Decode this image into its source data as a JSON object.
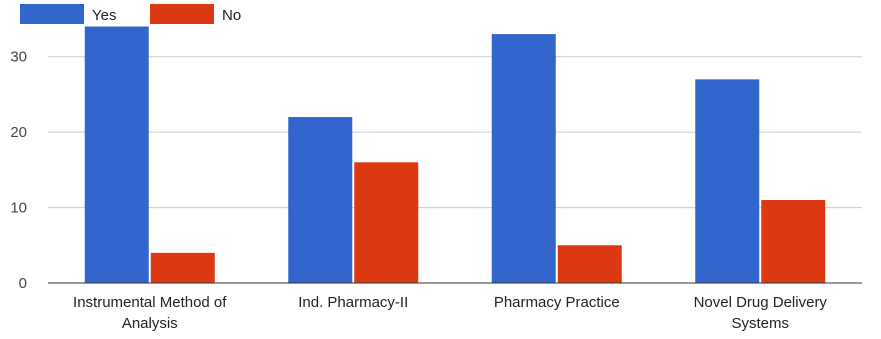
{
  "chart_data": {
    "type": "bar",
    "categories": [
      [
        "Instrumental Method of",
        "Analysis"
      ],
      [
        "Ind. Pharmacy-II"
      ],
      [
        "Pharmacy Practice"
      ],
      [
        "Novel Drug Delivery",
        "Systems"
      ]
    ],
    "series": [
      {
        "name": "Yes",
        "color": "#3366cc",
        "values": [
          34,
          22,
          33,
          27
        ]
      },
      {
        "name": "No",
        "color": "#dc3912",
        "values": [
          4,
          16,
          5,
          11
        ]
      }
    ],
    "yticks": [
      0,
      10,
      20,
      30
    ],
    "ylim": [
      0,
      34.6
    ],
    "grid": true,
    "legend": "top-left",
    "title": "",
    "xlabel": "",
    "ylabel": ""
  }
}
